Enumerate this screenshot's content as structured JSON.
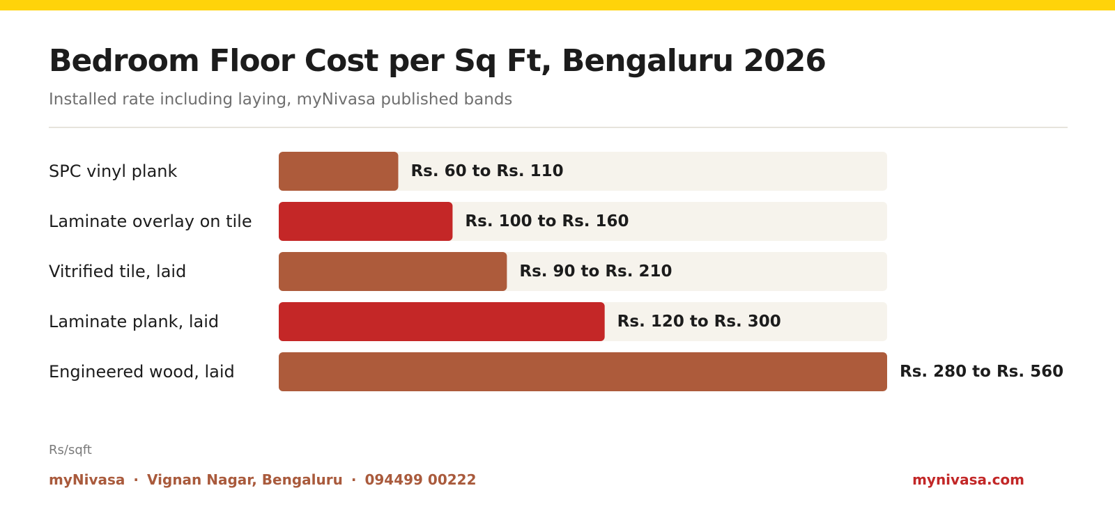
{
  "colors": {
    "stripe": "#ffd30a",
    "bar_brown": "#ad5b3b",
    "bar_red": "#c42727",
    "track": "#f6f3ec",
    "text_dark": "#1c1c1c",
    "footer_brand": "#a95a3c",
    "footer_site": "#c22727"
  },
  "header": {
    "title": "Bedroom Floor Cost per Sq Ft, Bengaluru 2026",
    "subtitle": "Installed rate including laying, myNivasa published bands"
  },
  "unit_label": "Rs/sqft",
  "footer": {
    "brand": "myNivasa",
    "address": "Vignan Nagar, Bengaluru",
    "phone": "094499 00222",
    "separator": "·",
    "site": "mynivasa.com"
  },
  "chart_data": {
    "type": "bar",
    "orientation": "horizontal",
    "xmax": 560,
    "categories": [
      "SPC vinyl plank",
      "Laminate overlay on tile",
      "Vitrified tile, laid",
      "Laminate plank, laid",
      "Engineered wood, laid"
    ],
    "low": [
      60,
      100,
      90,
      120,
      280
    ],
    "high": [
      110,
      160,
      210,
      300,
      560
    ],
    "value_labels": [
      "Rs. 60 to Rs. 110",
      "Rs. 100 to Rs. 160",
      "Rs. 90 to Rs. 210",
      "Rs. 120 to Rs. 300",
      "Rs. 280 to Rs. 560"
    ],
    "bar_colors": [
      "#ad5b3b",
      "#c42727",
      "#ad5b3b",
      "#c42727",
      "#ad5b3b"
    ],
    "grid": false,
    "legend": "none"
  }
}
